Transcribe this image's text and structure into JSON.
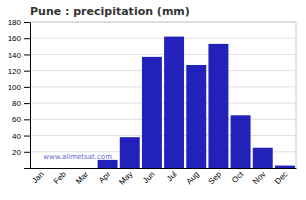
{
  "chart_data": {
    "type": "bar",
    "title": "Pune : precipitation (mm)",
    "categories": [
      "Jan",
      "Feb",
      "Mar",
      "Apr",
      "May",
      "Jun",
      "Jul",
      "Aug",
      "Sep",
      "Oct",
      "Nov",
      "Dec"
    ],
    "values": [
      0,
      0,
      0,
      10,
      38,
      137,
      162,
      127,
      153,
      65,
      25,
      3
    ],
    "color": "#2222bb",
    "ylim": [
      0,
      180
    ],
    "yticks": [
      20,
      40,
      60,
      80,
      100,
      120,
      140,
      160,
      180
    ],
    "grid": true,
    "annotations": [
      "www.allmetsat.com"
    ]
  }
}
